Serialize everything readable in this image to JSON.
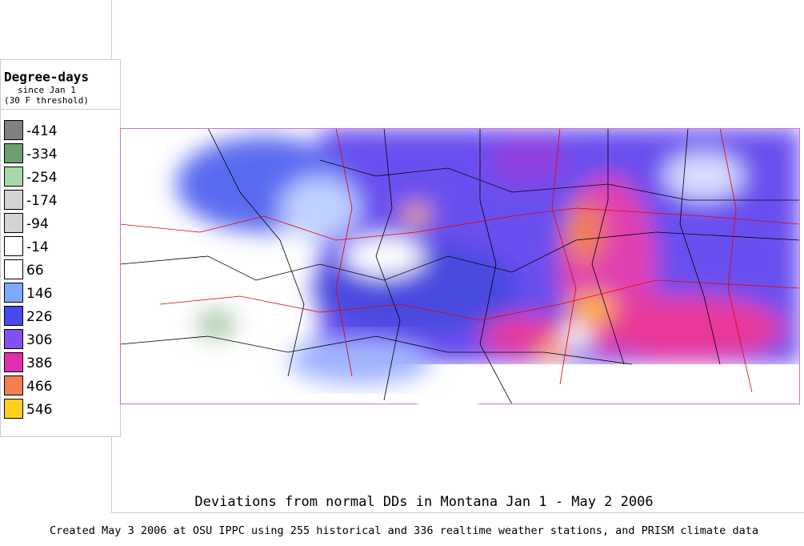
{
  "legend": {
    "title": "Degree-days",
    "subtitle": "since Jan 1",
    "note": "(30 F threshold)",
    "items": [
      {
        "label": "-414",
        "color": "#808080"
      },
      {
        "label": "-334",
        "color": "#6f9f6f"
      },
      {
        "label": "-254",
        "color": "#a8d8a8"
      },
      {
        "label": "-174",
        "color": "#d4d4d4"
      },
      {
        "label": "-94",
        "color": "#d4d4d4"
      },
      {
        "label": "-14",
        "color": "#ffffff"
      },
      {
        "label": "66",
        "color": "#ffffff"
      },
      {
        "label": "146",
        "color": "#80a8ff"
      },
      {
        "label": "226",
        "color": "#4848f0"
      },
      {
        "label": "306",
        "color": "#8050f0"
      },
      {
        "label": "386",
        "color": "#e030b0"
      },
      {
        "label": "466",
        "color": "#f08050"
      },
      {
        "label": "546",
        "color": "#ffd020"
      }
    ]
  },
  "map": {
    "title": "Deviations from normal DDs in Montana  Jan 1 - May 2 2006"
  },
  "footer": {
    "caption": "Created May 3 2006 at OSU IPPC using 255 historical and 336 realtime weather stations, and PRISM climate data"
  }
}
